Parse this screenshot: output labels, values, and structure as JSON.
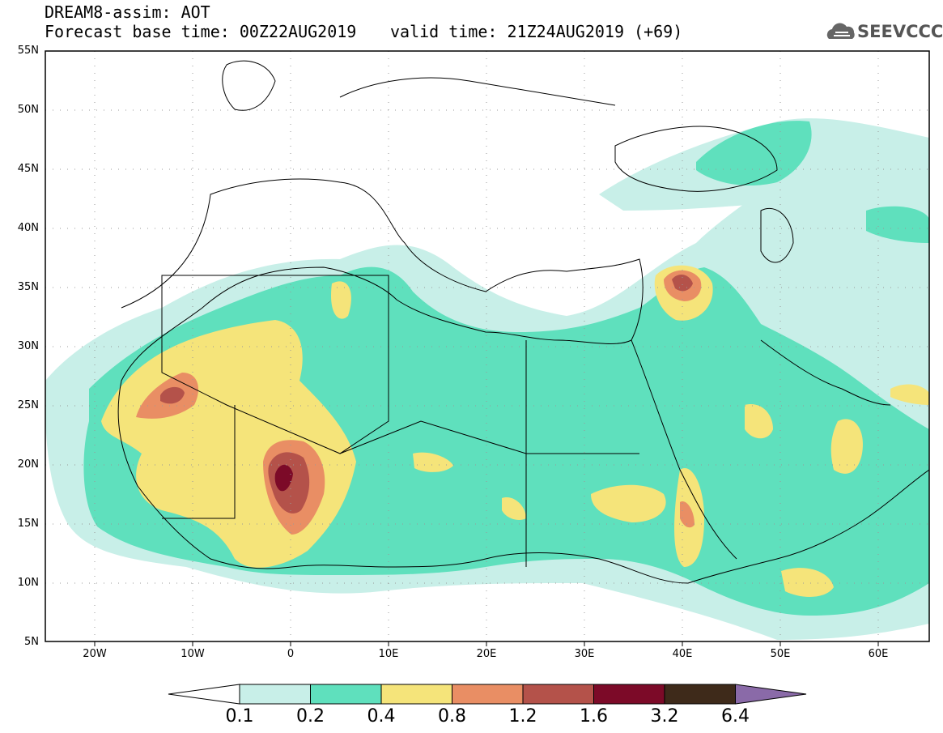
{
  "header": {
    "line1": "DREAM8-assim: AOT",
    "line2a": "Forecast base time: 00Z22AUG2019",
    "line2b": "valid time: 21Z24AUG2019 (+69)"
  },
  "logo": {
    "text": "SEEVCCC",
    "icon": "cloud-logo-icon"
  },
  "axes": {
    "lat_labels": [
      "55N",
      "50N",
      "45N",
      "40N",
      "35N",
      "30N",
      "25N",
      "20N",
      "15N",
      "10N",
      "5N"
    ],
    "lon_labels": [
      "20W",
      "10W",
      "0",
      "10E",
      "20E",
      "30E",
      "40E",
      "50E",
      "60E"
    ]
  },
  "colorbar": {
    "labels": [
      "0.1",
      "0.2",
      "0.4",
      "0.8",
      "1.2",
      "1.6",
      "3.2",
      "6.4"
    ],
    "colors": [
      "#ffffff",
      "#c8efe8",
      "#5fe0bd",
      "#f5e47a",
      "#e98e64",
      "#b4524a",
      "#7c0a28",
      "#3e2a1a",
      "#8a6aa8"
    ]
  }
}
